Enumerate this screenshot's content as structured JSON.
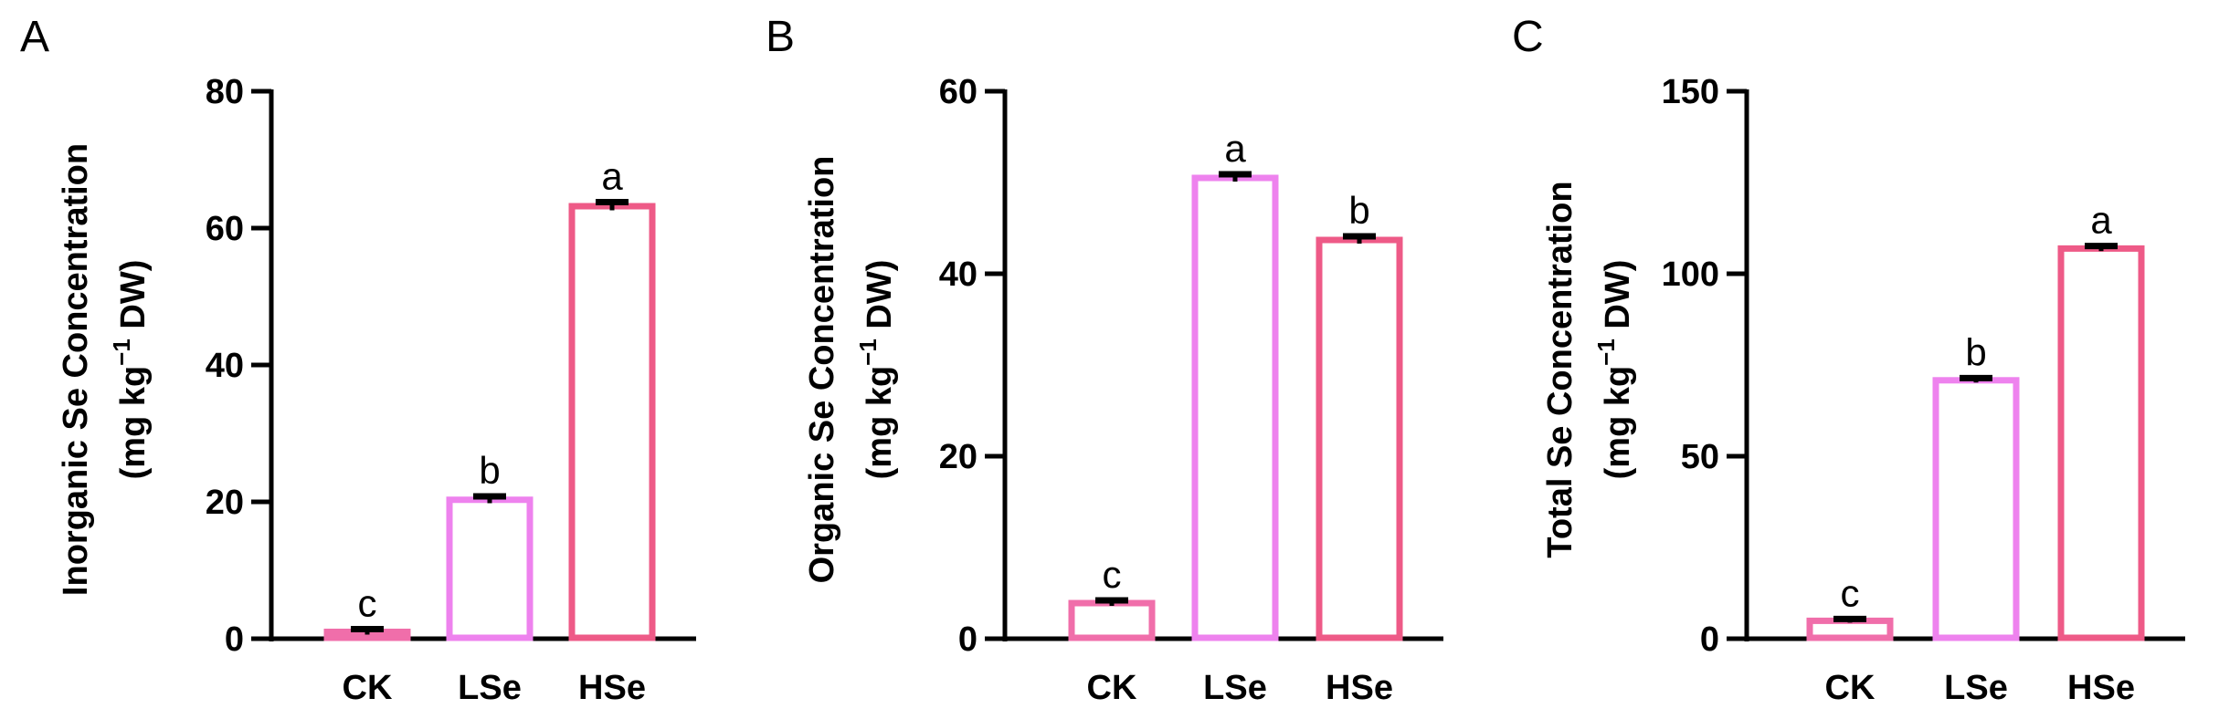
{
  "colors": {
    "CK": "#F06EAA",
    "LSe": "#EE82EE",
    "HSe": "#EE5A87",
    "axis": "#000000",
    "errorbar": "#000000"
  },
  "chart_data": [
    {
      "panel": "A",
      "type": "bar",
      "title": "",
      "categories": [
        "CK",
        "LSe",
        "HSe"
      ],
      "values": [
        1.0,
        20.3,
        63.2
      ],
      "errors": [
        0.4,
        0.5,
        0.6
      ],
      "significance": [
        "c",
        "b",
        "a"
      ],
      "ylabel_line1": "Inorganic Se Concentration",
      "ylabel_line2_pre": "(mg kg",
      "ylabel_line2_sup": "−1",
      "ylabel_line2_post": " DW)",
      "xlabel": "",
      "ylim": [
        0,
        80
      ],
      "yticks": [
        0,
        20,
        40,
        60,
        80
      ],
      "grid": false,
      "legend": "none"
    },
    {
      "panel": "B",
      "type": "bar",
      "title": "",
      "categories": [
        "CK",
        "LSe",
        "HSe"
      ],
      "values": [
        3.9,
        50.5,
        43.7
      ],
      "errors": [
        0.3,
        0.4,
        0.4
      ],
      "significance": [
        "c",
        "a",
        "b"
      ],
      "ylabel_line1": "Organic Se Concentration",
      "ylabel_line2_pre": "(mg kg",
      "ylabel_line2_sup": "−1",
      "ylabel_line2_post": " DW)",
      "xlabel": "",
      "ylim": [
        0,
        60
      ],
      "yticks": [
        0,
        20,
        40,
        60
      ],
      "grid": false,
      "legend": "none"
    },
    {
      "panel": "C",
      "type": "bar",
      "title": "",
      "categories": [
        "CK",
        "LSe",
        "HSe"
      ],
      "values": [
        4.9,
        70.8,
        106.9
      ],
      "errors": [
        0.5,
        0.6,
        0.7
      ],
      "significance": [
        "c",
        "b",
        "a"
      ],
      "ylabel_line1": "Total Se Concentration",
      "ylabel_line2_pre": "(mg kg",
      "ylabel_line2_sup": "−1",
      "ylabel_line2_post": " DW)",
      "xlabel": "",
      "ylim": [
        0,
        150
      ],
      "yticks": [
        0,
        50,
        100,
        150
      ],
      "grid": false,
      "legend": "none"
    }
  ]
}
